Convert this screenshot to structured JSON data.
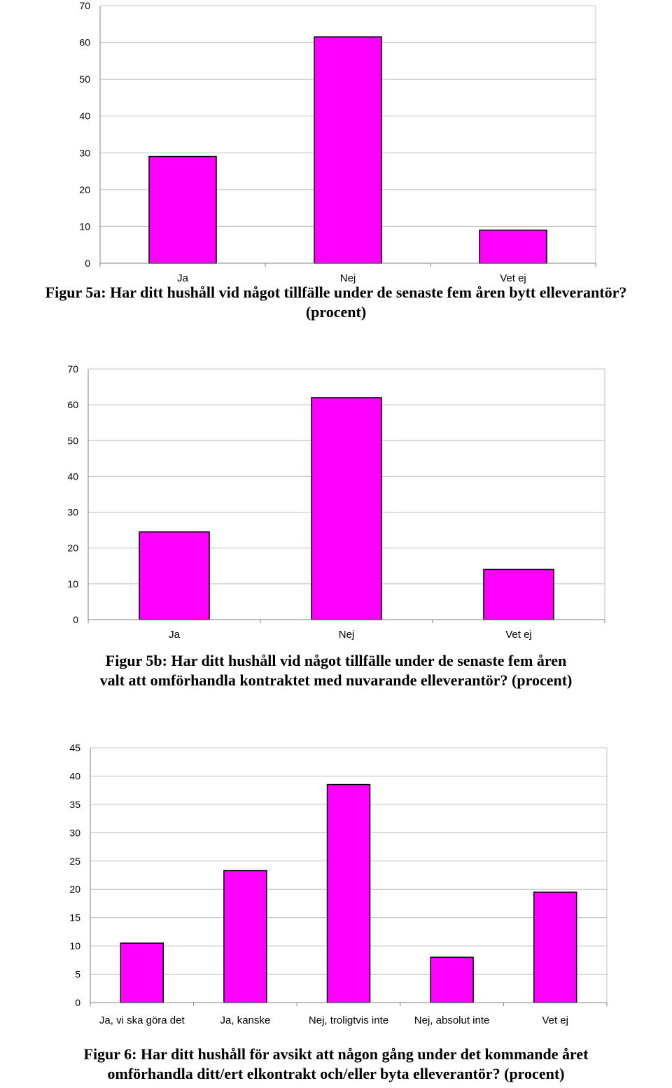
{
  "colors": {
    "bar_fill": "#ff00ff",
    "bar_stroke": "#000000",
    "grid": "#c0c0c0",
    "axis": "#808080"
  },
  "chart_data": [
    {
      "type": "bar",
      "categories": [
        "Ja",
        "Nej",
        "Vet ej"
      ],
      "values": [
        29,
        61.5,
        9
      ],
      "ylim": [
        0,
        70
      ],
      "yticks": [
        "0",
        "10",
        "20",
        "30",
        "40",
        "50",
        "60",
        "70"
      ],
      "grid": true,
      "caption_lines": [
        "Figur 5a: Har ditt hushåll vid något tillfälle under de senaste fem åren bytt elleverantör?",
        "(procent)"
      ]
    },
    {
      "type": "bar",
      "categories": [
        "Ja",
        "Nej",
        "Vet ej"
      ],
      "values": [
        24.5,
        62,
        14
      ],
      "ylim": [
        0,
        70
      ],
      "yticks": [
        "0",
        "10",
        "20",
        "30",
        "40",
        "50",
        "60",
        "70"
      ],
      "grid": true,
      "caption_lines": [
        "Figur 5b: Har ditt hushåll vid något tillfälle under de senaste fem åren",
        "valt att omförhandla kontraktet med nuvarande elleverantör? (procent)"
      ]
    },
    {
      "type": "bar",
      "categories": [
        "Ja, vi ska göra det",
        "Ja, kanske",
        "Nej, troligtvis inte",
        "Nej, absolut inte",
        "Vet ej"
      ],
      "values": [
        10.5,
        23.3,
        38.5,
        8,
        19.5
      ],
      "ylim": [
        0,
        45
      ],
      "yticks": [
        "0",
        "5",
        "10",
        "15",
        "20",
        "25",
        "30",
        "35",
        "40",
        "45"
      ],
      "grid": true,
      "caption_lines": [
        "Figur 6: Har ditt hushåll för avsikt att någon gång under det kommande året",
        "omförhandla ditt/ert elkontrakt och/eller byta elleverantör? (procent)"
      ]
    }
  ]
}
